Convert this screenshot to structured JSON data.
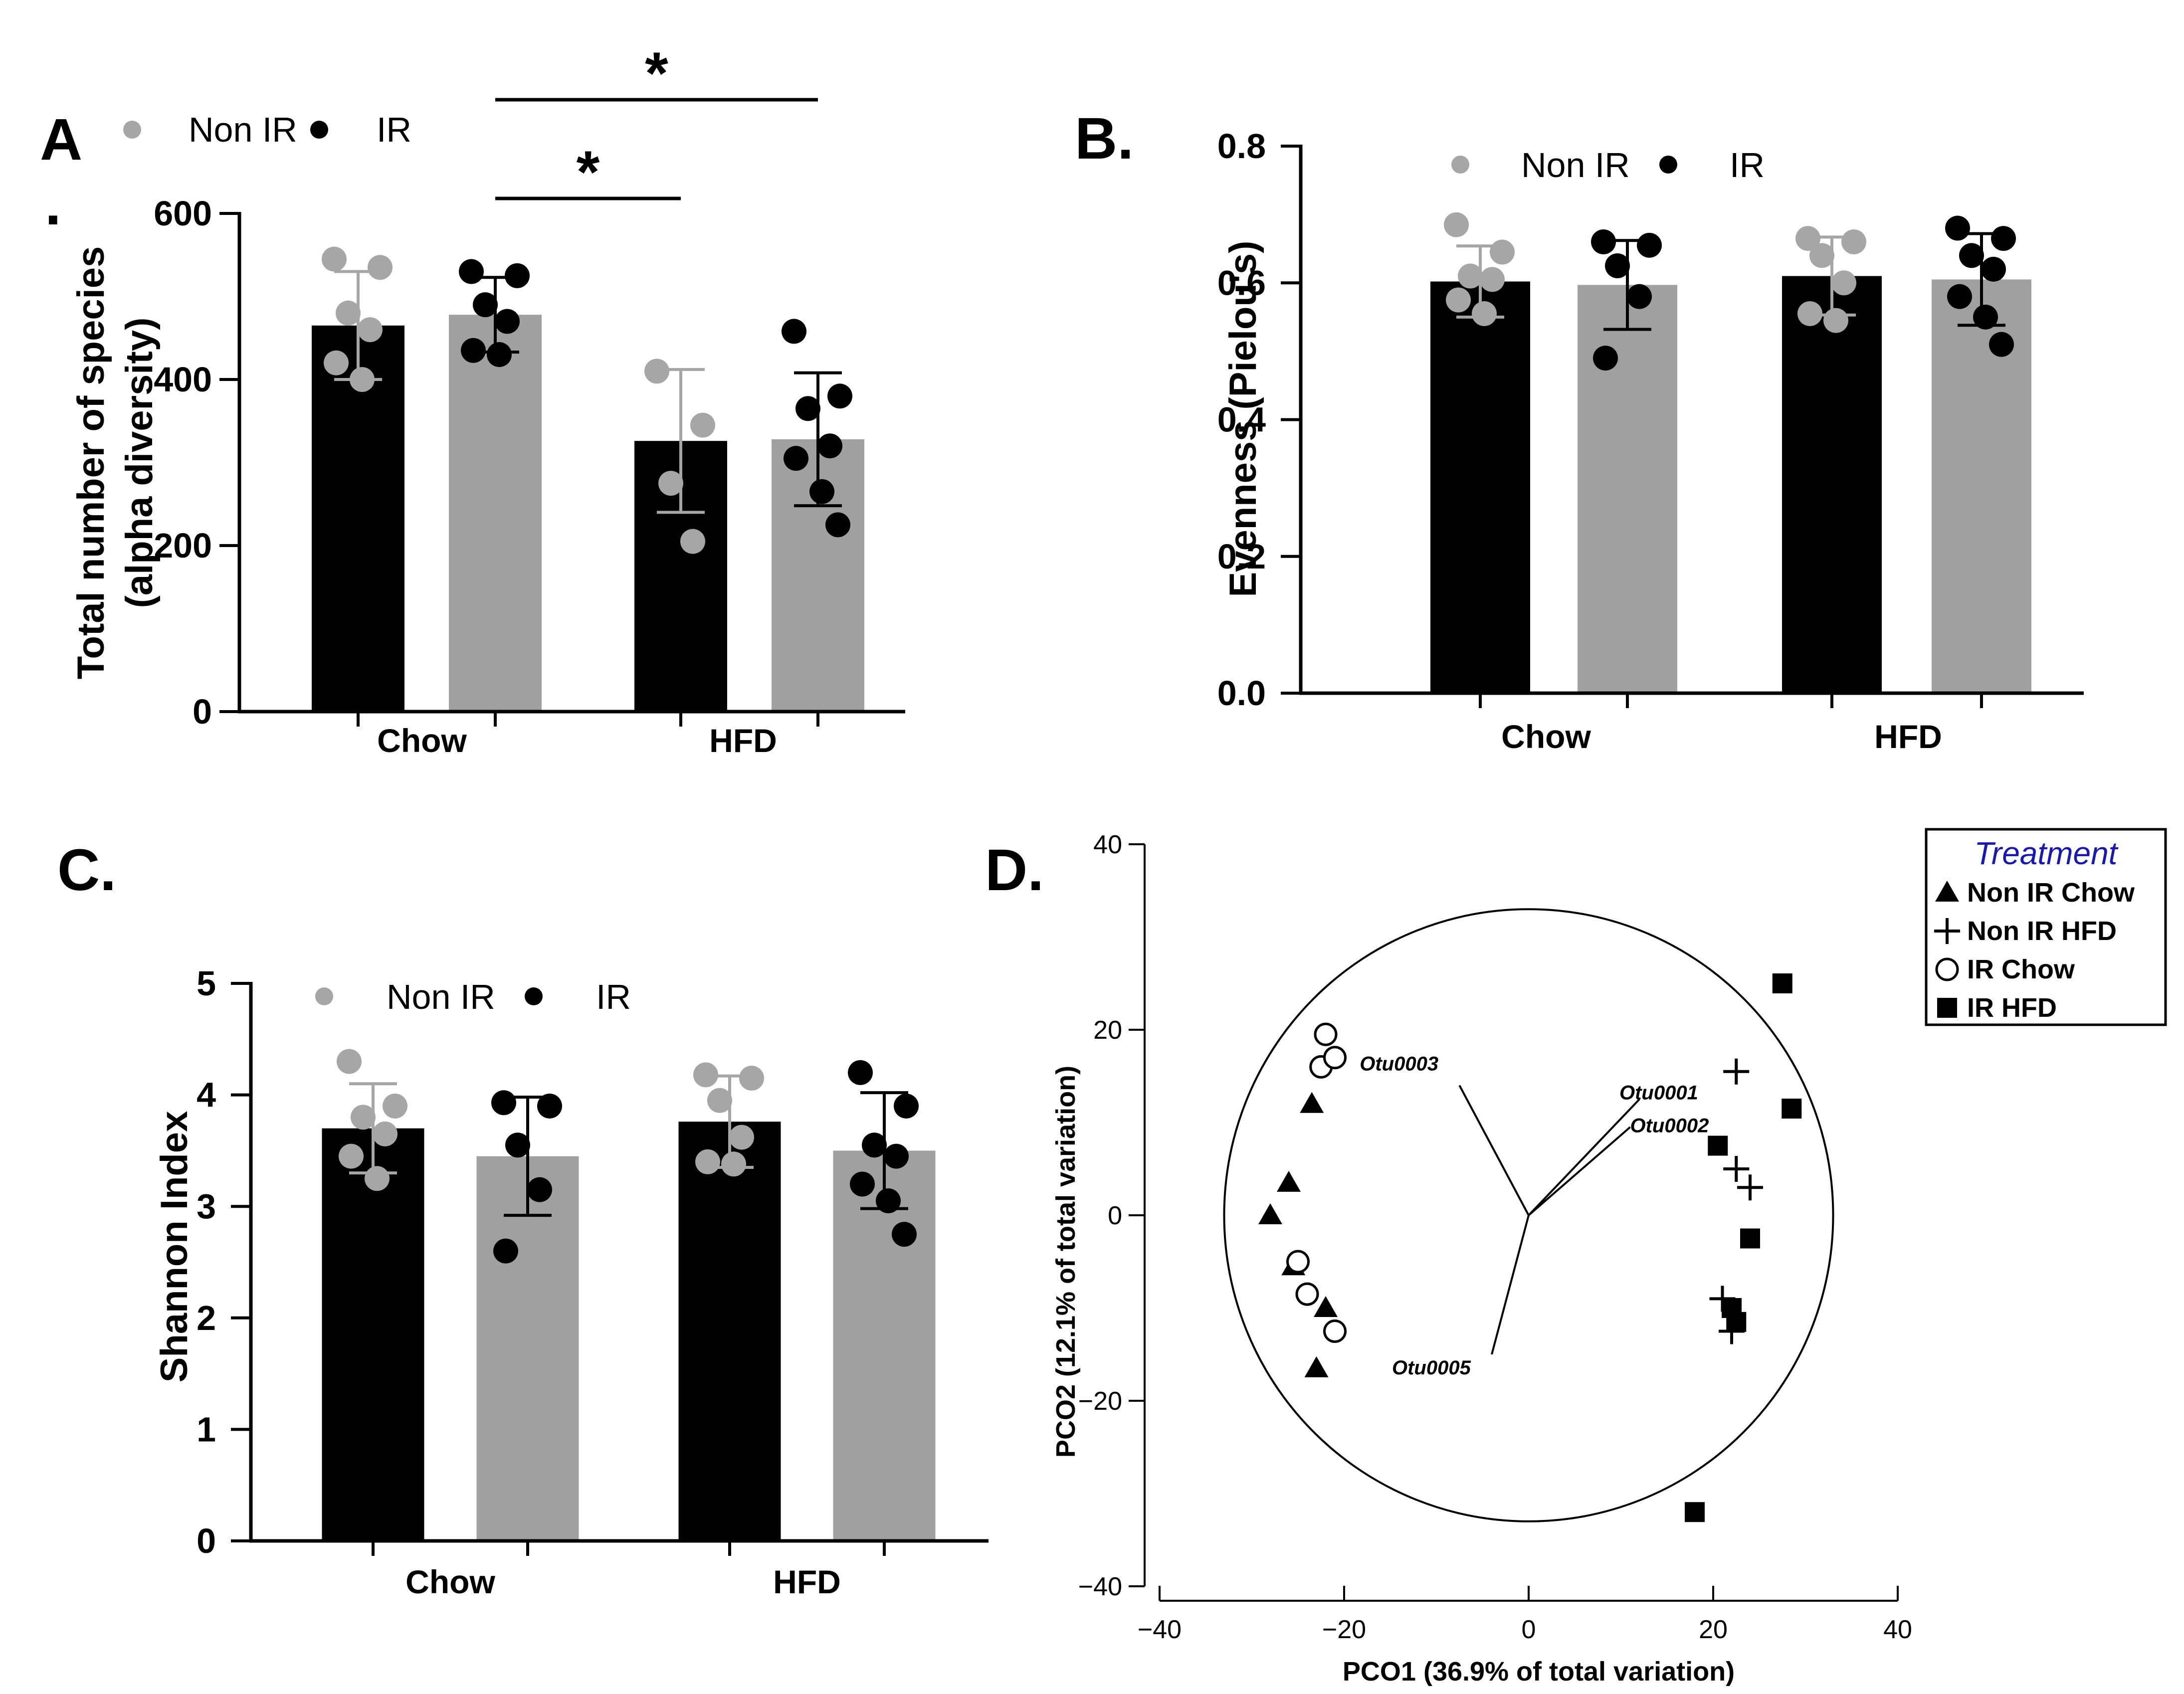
{
  "colors": {
    "black": "#000000",
    "gray": "#a0a0a3",
    "gray_dot": "#a6a6a6",
    "legend_title": "#1a1aa6"
  },
  "chart_data": [
    {
      "panel": "A",
      "panel_label": "A",
      "stray_mark": ".",
      "type": "bar",
      "ylabel_line1": "Total number of species",
      "ylabel_line2": "(alpha diversity)",
      "ylim": [
        0,
        600
      ],
      "yticks": [
        0,
        200,
        400,
        600
      ],
      "tick_labels": [
        "0",
        "200",
        "400",
        "600"
      ],
      "categories": [
        "Chow",
        "HFD"
      ],
      "legend": [
        {
          "name": "Non IR",
          "marker_color": "#a6a6a6"
        },
        {
          "name": "IR",
          "marker_color": "#000000"
        }
      ],
      "bars": [
        {
          "group": "Chow",
          "series": "Non IR",
          "fill": "#000000",
          "point_color": "#a6a6a6",
          "err_color": "#a6a6a6",
          "mean": 465,
          "sd": 65,
          "points": [
            545,
            535,
            480,
            460,
            420,
            400
          ]
        },
        {
          "group": "Chow",
          "series": "IR",
          "fill": "#a0a0a3",
          "point_color": "#000000",
          "err_color": "#000000",
          "mean": 478,
          "sd": 45,
          "points": [
            530,
            525,
            490,
            470,
            435,
            430
          ]
        },
        {
          "group": "HFD",
          "series": "Non IR",
          "fill": "#000000",
          "point_color": "#a6a6a6",
          "err_color": "#a6a6a6",
          "mean": 326,
          "sd": 86,
          "points": [
            410,
            345,
            275,
            205
          ]
        },
        {
          "group": "HFD",
          "series": "IR",
          "fill": "#a0a0a3",
          "point_color": "#000000",
          "err_color": "#000000",
          "mean": 328,
          "sd": 80,
          "points": [
            458,
            380,
            365,
            320,
            305,
            265,
            225
          ]
        }
      ],
      "significance": [
        {
          "from_bar": 1,
          "to_bar": 3,
          "label": "*",
          "level": 0
        },
        {
          "from_bar": 1,
          "to_bar": 2,
          "label": "*",
          "level": 1
        }
      ]
    },
    {
      "panel": "B",
      "panel_label": "B.",
      "type": "bar",
      "ylabel": "Evenness (Pielou's)",
      "ylim": [
        0,
        0.8
      ],
      "yticks": [
        0,
        0.2,
        0.4,
        0.6,
        0.8
      ],
      "tick_labels": [
        "0.0",
        "0.2",
        "0.4",
        "0.6",
        "0.8"
      ],
      "categories": [
        "Chow",
        "HFD"
      ],
      "legend": [
        {
          "name": "Non IR",
          "marker_color": "#a6a6a6"
        },
        {
          "name": "IR",
          "marker_color": "#000000"
        }
      ],
      "bars": [
        {
          "group": "Chow",
          "series": "Non IR",
          "fill": "#000000",
          "point_color": "#a6a6a6",
          "err_color": "#a6a6a6",
          "mean": 0.602,
          "sd": 0.052,
          "points": [
            0.685,
            0.645,
            0.61,
            0.605,
            0.575,
            0.555
          ]
        },
        {
          "group": "Chow",
          "series": "IR",
          "fill": "#a0a0a3",
          "point_color": "#000000",
          "err_color": "#000000",
          "mean": 0.597,
          "sd": 0.065,
          "points": [
            0.66,
            0.655,
            0.625,
            0.58,
            0.49
          ]
        },
        {
          "group": "HFD",
          "series": "Non IR",
          "fill": "#000000",
          "point_color": "#a6a6a6",
          "err_color": "#a6a6a6",
          "mean": 0.61,
          "sd": 0.057,
          "points": [
            0.665,
            0.66,
            0.64,
            0.6,
            0.555,
            0.545
          ]
        },
        {
          "group": "HFD",
          "series": "IR",
          "fill": "#a0a0a3",
          "point_color": "#000000",
          "err_color": "#000000",
          "mean": 0.605,
          "sd": 0.067,
          "points": [
            0.68,
            0.665,
            0.64,
            0.62,
            0.58,
            0.55,
            0.51
          ]
        }
      ]
    },
    {
      "panel": "C",
      "panel_label": "C.",
      "type": "bar",
      "ylabel": "Shannon Index",
      "ylim": [
        0,
        5
      ],
      "yticks": [
        0,
        1,
        2,
        3,
        4,
        5
      ],
      "tick_labels": [
        "0",
        "1",
        "2",
        "3",
        "4",
        "5"
      ],
      "categories": [
        "Chow",
        "HFD"
      ],
      "legend": [
        {
          "name": "Non IR",
          "marker_color": "#a6a6a6"
        },
        {
          "name": "IR",
          "marker_color": "#000000"
        }
      ],
      "bars": [
        {
          "group": "Chow",
          "series": "Non IR",
          "fill": "#000000",
          "point_color": "#a6a6a6",
          "err_color": "#a6a6a6",
          "mean": 3.7,
          "sd": 0.4,
          "points": [
            4.3,
            3.9,
            3.8,
            3.65,
            3.45,
            3.25
          ]
        },
        {
          "group": "Chow",
          "series": "IR",
          "fill": "#a0a0a3",
          "point_color": "#000000",
          "err_color": "#000000",
          "mean": 3.45,
          "sd": 0.53,
          "points": [
            3.93,
            3.9,
            3.55,
            3.15,
            2.6
          ]
        },
        {
          "group": "HFD",
          "series": "Non IR",
          "fill": "#000000",
          "point_color": "#a6a6a6",
          "err_color": "#a6a6a6",
          "mean": 3.76,
          "sd": 0.41,
          "points": [
            4.18,
            4.15,
            3.95,
            3.62,
            3.4,
            3.38
          ]
        },
        {
          "group": "HFD",
          "series": "IR",
          "fill": "#a0a0a3",
          "point_color": "#000000",
          "err_color": "#000000",
          "mean": 3.5,
          "sd": 0.52,
          "points": [
            4.2,
            3.9,
            3.55,
            3.45,
            3.2,
            3.05,
            2.75
          ]
        }
      ]
    },
    {
      "panel": "D",
      "panel_label": "D.",
      "type": "scatter",
      "xlabel": "PCO1 (36.9% of total variation)",
      "ylabel": "PCO2 (12.1% of total variation)",
      "xlim": [
        -40,
        40
      ],
      "ylim": [
        -40,
        40
      ],
      "xticks": [
        -40,
        -20,
        0,
        20,
        40
      ],
      "xtick_labels": [
        "−40",
        "−20",
        "0",
        "20",
        "40"
      ],
      "yticks": [
        -40,
        -20,
        0,
        20,
        40
      ],
      "ytick_labels": [
        "−40",
        "−20",
        "0",
        "20",
        "40"
      ],
      "legend_title": "Treatment",
      "circle_radius": 33,
      "series": [
        {
          "name": "Non IR Chow",
          "marker": "triangle",
          "points": [
            [
              -23.5,
              12
            ],
            [
              -26,
              3.5
            ],
            [
              -28,
              0
            ],
            [
              -25.5,
              -5.5
            ],
            [
              -22,
              -10
            ],
            [
              -23,
              -16.5
            ]
          ]
        },
        {
          "name": "Non IR HFD",
          "marker": "plus",
          "points": [
            [
              22.5,
              15.5
            ],
            [
              22.5,
              5
            ],
            [
              24,
              3
            ],
            [
              21,
              -9
            ],
            [
              22,
              -12.5
            ]
          ]
        },
        {
          "name": "IR Chow",
          "marker": "open-circle",
          "points": [
            [
              -22,
              19.5
            ],
            [
              -22.5,
              16
            ],
            [
              -21,
              17
            ],
            [
              -25,
              -5
            ],
            [
              -24,
              -8.5
            ],
            [
              -21,
              -12.5
            ]
          ]
        },
        {
          "name": "IR HFD",
          "marker": "square",
          "points": [
            [
              27.5,
              25
            ],
            [
              28.5,
              11.5
            ],
            [
              20.5,
              7.5
            ],
            [
              24,
              -2.5
            ],
            [
              22,
              -10
            ],
            [
              22.5,
              -11.5
            ],
            [
              18,
              -32
            ]
          ]
        }
      ],
      "vectors": [
        {
          "label": "Otu0003",
          "end": [
            -7.5,
            14
          ]
        },
        {
          "label": "Otu0001",
          "end": [
            12,
            12.5
          ]
        },
        {
          "label": "Otu0002",
          "end": [
            11,
            9.5
          ]
        },
        {
          "label": "Otu0005",
          "end": [
            -4,
            -15
          ]
        }
      ]
    }
  ]
}
